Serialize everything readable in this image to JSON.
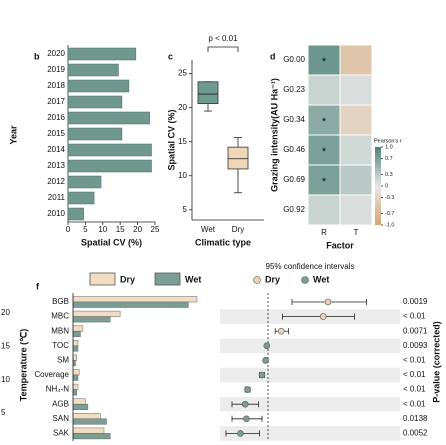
{
  "chart_data": [
    {
      "type": "axis",
      "ylabel": "Temperature (℃)",
      "ylim": [
        2,
        23
      ],
      "yticks": [
        5,
        10,
        15,
        20
      ]
    },
    {
      "type": "hbar",
      "panel": "b",
      "categories": [
        "2020",
        "2019",
        "2018",
        "2017",
        "2016",
        "2015",
        "2014",
        "2013",
        "2012",
        "2011",
        "2010"
      ],
      "values": [
        19.5,
        14.5,
        17.5,
        15.5,
        23.5,
        15.5,
        24,
        24,
        9.5,
        7.5,
        4.5
      ],
      "color": "#6f978d",
      "xlabel": "Spatial CV (%)",
      "ylabel": "Year",
      "xlim": [
        0,
        25
      ],
      "xticks": [
        0,
        5,
        10,
        15,
        20,
        25
      ]
    },
    {
      "type": "box",
      "panel": "c",
      "categories": [
        "Wet",
        "Dry"
      ],
      "colors": [
        "#6f9a8f",
        "#f0d6b8"
      ],
      "min": [
        19.5,
        7.5
      ],
      "q1": [
        20.6,
        11
      ],
      "median": [
        22,
        12.5
      ],
      "q3": [
        23.8,
        14.2
      ],
      "max": [
        23.8,
        15.6
      ],
      "annotation": "p < 0.01",
      "xlabel": "Climatic type",
      "ylabel": "Spatial CV (%)",
      "ylim": [
        3.5,
        27
      ],
      "yticks": [
        5,
        10,
        15,
        20,
        25
      ]
    },
    {
      "type": "heatmap",
      "panel": "d",
      "rows": [
        "G0.00",
        "G0.23",
        "G0.34",
        "G0.46",
        "G0.69",
        "G0.92"
      ],
      "columns": [
        "R",
        "T"
      ],
      "values": [
        [
          0.8,
          -0.5
        ],
        [
          0.2,
          0.1
        ],
        [
          0.6,
          -0.3
        ],
        [
          0.7,
          0.15
        ],
        [
          0.7,
          0.3
        ],
        [
          0.2,
          0.1
        ]
      ],
      "significant": [
        [
          true,
          false
        ],
        [
          false,
          false
        ],
        [
          true,
          false
        ],
        [
          true,
          false
        ],
        [
          true,
          false
        ],
        [
          false,
          false
        ]
      ],
      "significance_mark": "*",
      "xlabel": "Factor",
      "ylabel": "Grazing intensity(AU Ha⁻¹)",
      "colorbar_title": "Pearson's r",
      "colors": [
        "#d6a26b",
        "#e8e8e8",
        "#4d8277"
      ],
      "clim": [
        -1,
        1
      ],
      "cticks": [
        {
          "value": 1,
          "label": "1.0"
        },
        0.7,
        0.3,
        0,
        -0.3,
        -0.7,
        {
          "value": -1,
          "label": "-1.0"
        }
      ]
    },
    {
      "type": "grouped-hbar",
      "panel": "f",
      "categories": [
        "BGB",
        "MBC",
        "MBN",
        "TOC",
        "SM",
        "Coverage",
        "NH₄-N",
        "AGB",
        "SAN",
        "SAK"
      ],
      "xlim": [
        0,
        100
      ],
      "series": [
        {
          "name": "Dry",
          "color": "#f2dcc2",
          "values": [
            100,
            38,
            8,
            4,
            3,
            5,
            4,
            10,
            22,
            25
          ]
        },
        {
          "name": "Wet",
          "color": "#7a9e94",
          "values": [
            93,
            30,
            6,
            4,
            2,
            4,
            3,
            12,
            27,
            30
          ]
        }
      ]
    },
    {
      "type": "forest",
      "legend_title": "95% confidence intervals",
      "ylabel": "P-value (corrected)",
      "xlim": [
        -0.4,
        1.1
      ],
      "p_labels": [
        "0.0019",
        "< 0.01",
        "0.0071",
        "0.0093",
        "< 0.01",
        "< 0.01",
        "< 0.01",
        "< 0.01",
        "0.0138",
        "0.0052"
      ],
      "series": [
        {
          "name": "Dry",
          "color": "#e8d3b5",
          "values": [
            0.5,
            0.46,
            0.11,
            null,
            null,
            null,
            null,
            null,
            null,
            null
          ],
          "ci_low": [
            0.2,
            0.12,
            0.06,
            null,
            null,
            null,
            null,
            null,
            null,
            null
          ],
          "ci_high": [
            0.82,
            0.72,
            0.17,
            null,
            null,
            null,
            null,
            null,
            null,
            null
          ]
        },
        {
          "name": "Wet",
          "color": "#7a9e94",
          "values": [
            null,
            null,
            null,
            -0.01,
            -0.02,
            -0.05,
            -0.17,
            -0.19,
            -0.18,
            -0.23
          ],
          "ci_low": [
            null,
            null,
            null,
            -0.02,
            -0.03,
            -0.07,
            -0.19,
            -0.3,
            -0.3,
            -0.35
          ],
          "ci_high": [
            null,
            null,
            null,
            0,
            -0.01,
            -0.03,
            -0.15,
            -0.08,
            -0.05,
            -0.07
          ]
        }
      ]
    }
  ]
}
